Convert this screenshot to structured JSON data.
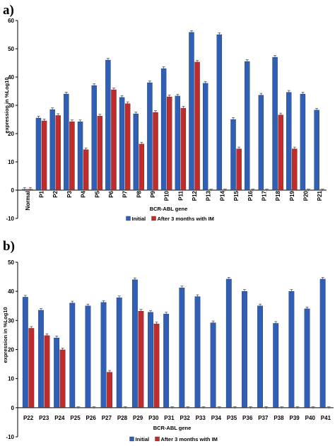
{
  "colors": {
    "initial": "#2f5fb6",
    "after": "#c22b2b",
    "axis": "#000000",
    "errorbar": "#555555"
  },
  "chart_data": [
    {
      "type": "bar",
      "panel_label": "a)",
      "xlabel": "BCR-ABL  gene",
      "ylabel": "expression in %Log10",
      "ylim": [
        -10,
        60
      ],
      "yticks": [
        -10,
        0,
        10,
        20,
        30,
        40,
        50,
        60
      ],
      "grid": false,
      "legend_position": "bottom",
      "categories": [
        "Normal",
        "P1",
        "P2",
        "P3",
        "P4",
        "P5",
        "P6",
        "P7",
        "P8",
        "P9",
        "P10",
        "P11",
        "P12",
        "P13",
        "P14",
        "P15",
        "P16",
        "P17",
        "P18",
        "P19",
        "P20",
        "P21"
      ],
      "series": [
        {
          "name": "Initial",
          "color_key": "initial",
          "values": [
            0.3,
            25.5,
            28.5,
            34,
            24.2,
            37,
            46,
            32.8,
            27,
            38,
            43,
            33.3,
            55.8,
            37.8,
            55,
            25,
            45.5,
            33.6,
            47,
            34.6,
            34,
            28.3
          ]
        },
        {
          "name": "After 3 months with IM",
          "color_key": "after",
          "values": [
            0.3,
            24.5,
            26.4,
            24.2,
            14.3,
            26.2,
            35.5,
            30.6,
            16.3,
            27.5,
            33,
            29,
            45.3,
            0,
            0,
            14.6,
            0,
            0,
            26.6,
            14.6,
            0,
            0
          ]
        }
      ]
    },
    {
      "type": "bar",
      "panel_label": "b)",
      "xlabel": "BCR-ABL  gene",
      "ylabel": "expression in %Log10",
      "ylim": [
        -10,
        50
      ],
      "yticks": [
        -10,
        0,
        10,
        20,
        30,
        40,
        50
      ],
      "grid": false,
      "legend_position": "bottom",
      "categories": [
        "P22",
        "P23",
        "P24",
        "P25",
        "P26",
        "P27",
        "P28",
        "P29",
        "P30",
        "P31",
        "P32",
        "P33",
        "P34",
        "P35",
        "P36",
        "P37",
        "P38",
        "P39",
        "P40",
        "P41"
      ],
      "series": [
        {
          "name": "Initial",
          "color_key": "initial",
          "values": [
            38,
            33.5,
            24,
            36,
            35,
            36.2,
            37.8,
            44,
            32.8,
            32.2,
            41.2,
            38.2,
            29.2,
            44.2,
            40,
            35,
            29,
            40,
            34,
            44.2
          ]
        },
        {
          "name": "After 3 months with IM",
          "color_key": "after",
          "values": [
            27.3,
            24.8,
            19.9,
            0,
            0,
            12.2,
            0,
            33.2,
            28.8,
            0,
            0,
            0,
            0,
            0,
            0,
            0,
            0,
            0,
            0,
            0
          ]
        }
      ]
    }
  ]
}
